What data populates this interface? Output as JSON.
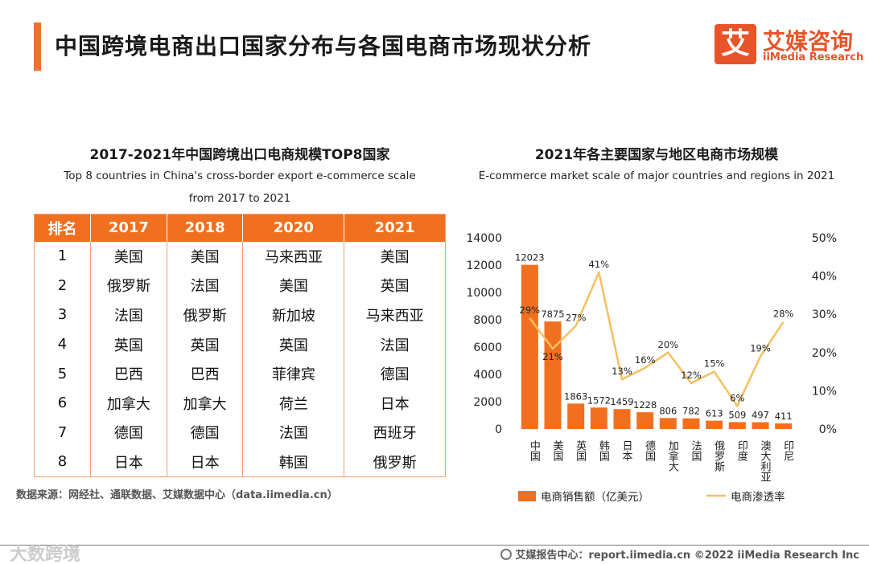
{
  "page": {
    "title": "中国跨境电商出口国家分布与各国电商市场现状分析",
    "logo_char": "艾",
    "logo_cn": "艾媒咨询",
    "logo_en": "iiMedia Research",
    "source": "数据来源：网经社、通联数据、艾媒数据中心（data.iimedia.cn）",
    "watermark": "大数跨境",
    "footer": "艾媒报告中心：report.iimedia.cn    ©2022  iiMedia Research  Inc",
    "accent_color": "#f07020"
  },
  "left": {
    "title_cn": "2017-2021年中国跨境出口电商规模TOP8国家",
    "title_en1": "Top 8 countries in China's cross-border export e-commerce scale",
    "title_en2": "from 2017 to 2021",
    "headers": [
      "排名",
      "2017",
      "2018",
      "2020",
      "2021"
    ],
    "rows": [
      [
        "1",
        "美国",
        "美国",
        "马来西亚",
        "美国"
      ],
      [
        "2",
        "俄罗斯",
        "法国",
        "美国",
        "英国"
      ],
      [
        "3",
        "法国",
        "俄罗斯",
        "新加坡",
        "马来西亚"
      ],
      [
        "4",
        "英国",
        "英国",
        "英国",
        "法国"
      ],
      [
        "5",
        "巴西",
        "巴西",
        "菲律宾",
        "德国"
      ],
      [
        "6",
        "加拿大",
        "加拿大",
        "荷兰",
        "日本"
      ],
      [
        "7",
        "德国",
        "德国",
        "法国",
        "西班牙"
      ],
      [
        "8",
        "日本",
        "日本",
        "韩国",
        "俄罗斯"
      ]
    ]
  },
  "right": {
    "title_cn": "2021年各主要国家与地区电商市场规模",
    "title_en": "E-commerce market scale of major countries and regions in 2021"
  },
  "chart_data": {
    "type": "bar",
    "title": "2021年各主要国家与地区电商市场规模",
    "categories": [
      "中国",
      "美国",
      "英国",
      "韩国",
      "日本",
      "德国",
      "加拿大",
      "法国",
      "俄罗斯",
      "印度",
      "澳大利亚",
      "印尼"
    ],
    "series": [
      {
        "name": "电商销售额（亿美元）",
        "type": "bar",
        "axis": "left",
        "color": "#f07020",
        "values": [
          12023,
          7875,
          1863,
          1572,
          1459,
          1228,
          806,
          782,
          613,
          509,
          497,
          411
        ]
      },
      {
        "name": "电商渗透率",
        "type": "line",
        "axis": "right",
        "color": "#f5c060",
        "values": [
          29,
          21,
          27,
          41,
          13,
          16,
          20,
          12,
          15,
          6,
          19,
          28
        ],
        "labels": [
          "29%",
          "21%",
          "27%",
          "41%",
          "13%",
          "16%",
          "20%",
          "12%",
          "15%",
          "6%",
          "19%",
          "28%"
        ]
      }
    ],
    "ylim_left": [
      0,
      14000
    ],
    "yticks_left": [
      "0",
      "2000",
      "4000",
      "6000",
      "8000",
      "10000",
      "12000",
      "14000"
    ],
    "ylim_right": [
      0,
      50
    ],
    "yticks_right": [
      "0%",
      "10%",
      "20%",
      "30%",
      "40%",
      "50%"
    ],
    "legend": "bottom",
    "legend_labels": [
      "电商销售额（亿美元）",
      "电商渗透率"
    ]
  }
}
